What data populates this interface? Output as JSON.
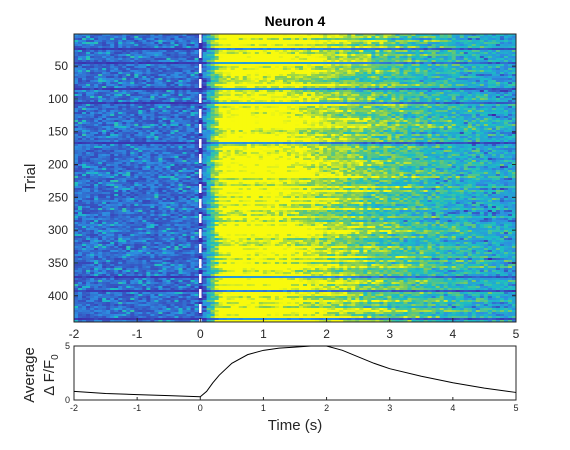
{
  "chart_data": [
    {
      "type": "heatmap",
      "title": "Neuron 4",
      "ylabel": "Trial",
      "xlabel": "",
      "xlim": [
        -2,
        5
      ],
      "ylim": [
        1,
        440
      ],
      "x_ticks": [
        "-2",
        "-1",
        "0",
        "1",
        "2",
        "3",
        "4",
        "5"
      ],
      "y_ticks": [
        "50",
        "100",
        "150",
        "200",
        "250",
        "300",
        "350",
        "400"
      ],
      "y_tick_values": [
        50,
        100,
        150,
        200,
        250,
        300,
        350,
        400
      ],
      "event_marker_x": 0,
      "colormap": [
        "#3e26a8",
        "#2d8ee1",
        "#1bbec4",
        "#80cb58",
        "#f8fa0d"
      ],
      "grid": false
    },
    {
      "type": "line",
      "title": "",
      "ylabel_lines": [
        "Average",
        "Δ F/F",
        "0"
      ],
      "xlabel": "Time (s)",
      "xlim": [
        -2,
        5
      ],
      "ylim": [
        0,
        5
      ],
      "x_ticks": [
        "-2",
        "-1",
        "0",
        "1",
        "2",
        "3",
        "4",
        "5"
      ],
      "y_ticks": [
        "0",
        "5"
      ],
      "series": [
        {
          "x": [
            -2,
            -1.5,
            -1,
            -0.5,
            0,
            0.1,
            0.2,
            0.3,
            0.5,
            0.75,
            1,
            1.25,
            1.5,
            1.75,
            2,
            2.25,
            2.5,
            2.75,
            3,
            3.5,
            4,
            4.5,
            5
          ],
          "values": [
            0.8,
            0.6,
            0.5,
            0.4,
            0.3,
            0.8,
            1.6,
            2.3,
            3.4,
            4.2,
            4.6,
            4.8,
            4.9,
            5.0,
            5.0,
            4.6,
            4.0,
            3.4,
            2.9,
            2.2,
            1.6,
            1.1,
            0.7
          ],
          "color": "#000000"
        }
      ]
    }
  ]
}
